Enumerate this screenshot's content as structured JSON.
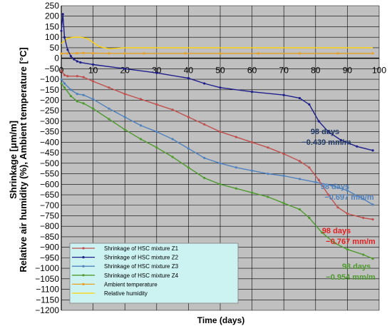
{
  "chart_data": {
    "type": "line",
    "xlabel": "Time (days)",
    "ylabel_line1": "Shrinkage [μm/m]",
    "ylabel_line2": "Relative air humidity (%), Ambient temperature [°C]",
    "xlim": [
      0,
      100
    ],
    "ylim": [
      -1200,
      250
    ],
    "x_ticks": [
      0,
      10,
      20,
      30,
      40,
      50,
      60,
      70,
      80,
      90,
      100
    ],
    "y_ticks": [
      250,
      200,
      150,
      100,
      50,
      0,
      -50,
      -100,
      -150,
      -200,
      -250,
      -300,
      -350,
      -400,
      -450,
      -500,
      -550,
      -600,
      -650,
      -700,
      -750,
      -800,
      -850,
      -900,
      -950,
      -1000,
      -1050,
      -1100,
      -1150,
      -1200
    ],
    "grid": true,
    "legend_position": "bottom-left",
    "series": [
      {
        "name": "Shrinkage of HSC mixture Z1",
        "color": "#c0504d",
        "marker": "dot",
        "points": [
          [
            0,
            -60
          ],
          [
            1,
            -80
          ],
          [
            2,
            -85
          ],
          [
            5,
            -85
          ],
          [
            7,
            -90
          ],
          [
            10,
            -110
          ],
          [
            15,
            -140
          ],
          [
            20,
            -170
          ],
          [
            25,
            -195
          ],
          [
            30,
            -220
          ],
          [
            35,
            -245
          ],
          [
            40,
            -280
          ],
          [
            45,
            -315
          ],
          [
            50,
            -350
          ],
          [
            55,
            -375
          ],
          [
            60,
            -400
          ],
          [
            65,
            -425
          ],
          [
            70,
            -455
          ],
          [
            75,
            -490
          ],
          [
            78,
            -520
          ],
          [
            81,
            -580
          ],
          [
            84,
            -650
          ],
          [
            87,
            -710
          ],
          [
            90,
            -740
          ],
          [
            95,
            -760
          ],
          [
            98,
            -767
          ]
        ]
      },
      {
        "name": "Shrinkage of HSC mixture Z2",
        "color": "#1f1f8c",
        "marker": "dot",
        "points": [
          [
            0,
            130
          ],
          [
            0.5,
            210
          ],
          [
            1,
            100
          ],
          [
            2,
            40
          ],
          [
            3,
            10
          ],
          [
            4,
            -5
          ],
          [
            5,
            -15
          ],
          [
            6,
            -20
          ],
          [
            10,
            -30
          ],
          [
            20,
            -50
          ],
          [
            30,
            -70
          ],
          [
            40,
            -95
          ],
          [
            45,
            -120
          ],
          [
            50,
            -140
          ],
          [
            60,
            -160
          ],
          [
            70,
            -175
          ],
          [
            75,
            -190
          ],
          [
            78,
            -220
          ],
          [
            81,
            -300
          ],
          [
            84,
            -350
          ],
          [
            88,
            -390
          ],
          [
            93,
            -420
          ],
          [
            98,
            -439
          ]
        ]
      },
      {
        "name": "Shrinkage of HSC mixture Z3",
        "color": "#4f81bd",
        "marker": "dot",
        "points": [
          [
            0,
            -100
          ],
          [
            1,
            -120
          ],
          [
            3,
            -150
          ],
          [
            5,
            -170
          ],
          [
            7,
            -175
          ],
          [
            10,
            -195
          ],
          [
            15,
            -240
          ],
          [
            20,
            -280
          ],
          [
            25,
            -320
          ],
          [
            30,
            -350
          ],
          [
            35,
            -385
          ],
          [
            40,
            -430
          ],
          [
            45,
            -475
          ],
          [
            50,
            -500
          ],
          [
            55,
            -520
          ],
          [
            60,
            -535
          ],
          [
            65,
            -550
          ],
          [
            70,
            -560
          ],
          [
            75,
            -575
          ],
          [
            80,
            -590
          ],
          [
            85,
            -605
          ],
          [
            90,
            -630
          ],
          [
            95,
            -670
          ],
          [
            98,
            -697
          ]
        ]
      },
      {
        "name": "Shrinkage of HSC mixture Z4",
        "color": "#4e9a2e",
        "marker": "dot",
        "points": [
          [
            0,
            -120
          ],
          [
            1,
            -140
          ],
          [
            3,
            -180
          ],
          [
            5,
            -205
          ],
          [
            7,
            -215
          ],
          [
            10,
            -240
          ],
          [
            15,
            -290
          ],
          [
            20,
            -340
          ],
          [
            25,
            -385
          ],
          [
            30,
            -425
          ],
          [
            35,
            -470
          ],
          [
            40,
            -520
          ],
          [
            45,
            -570
          ],
          [
            50,
            -600
          ],
          [
            55,
            -620
          ],
          [
            60,
            -640
          ],
          [
            65,
            -660
          ],
          [
            70,
            -690
          ],
          [
            75,
            -720
          ],
          [
            78,
            -760
          ],
          [
            82,
            -830
          ],
          [
            86,
            -880
          ],
          [
            90,
            -910
          ],
          [
            95,
            -935
          ],
          [
            98,
            -954
          ]
        ]
      },
      {
        "name": "Ambient temperature",
        "color": "#e8a020",
        "marker": "dot",
        "points": [
          [
            0,
            22
          ],
          [
            2,
            23
          ],
          [
            5,
            24
          ],
          [
            7,
            25
          ],
          [
            10,
            24
          ],
          [
            15,
            23
          ],
          [
            20,
            23
          ],
          [
            26,
            23
          ],
          [
            39,
            23
          ],
          [
            50,
            23
          ],
          [
            62,
            23
          ],
          [
            75,
            23
          ],
          [
            87,
            23
          ],
          [
            98,
            23
          ]
        ]
      },
      {
        "name": "Relative humidity",
        "color": "#ffd400",
        "marker": "none",
        "points": [
          [
            0,
            70
          ],
          [
            2,
            95
          ],
          [
            4,
            100
          ],
          [
            6,
            100
          ],
          [
            8,
            95
          ],
          [
            10,
            75
          ],
          [
            12,
            55
          ],
          [
            15,
            45
          ],
          [
            20,
            50
          ],
          [
            30,
            50
          ],
          [
            40,
            50
          ],
          [
            50,
            50
          ],
          [
            60,
            50
          ],
          [
            70,
            50
          ],
          [
            80,
            50
          ],
          [
            90,
            50
          ],
          [
            98,
            50
          ]
        ]
      }
    ],
    "annotations": [
      {
        "line1": "98 days",
        "line2": "−0.439 mm/m",
        "color": "#1f3864"
      },
      {
        "line1": "98 days",
        "line2": "−0.697 mm/m",
        "color": "#4f81bd"
      },
      {
        "line1": "98 days",
        "line2": "−0.767 mm/m",
        "color": "#e02020"
      },
      {
        "line1": "98 days",
        "line2": "−0.954 mm/m",
        "color": "#4e9a2e"
      }
    ]
  }
}
